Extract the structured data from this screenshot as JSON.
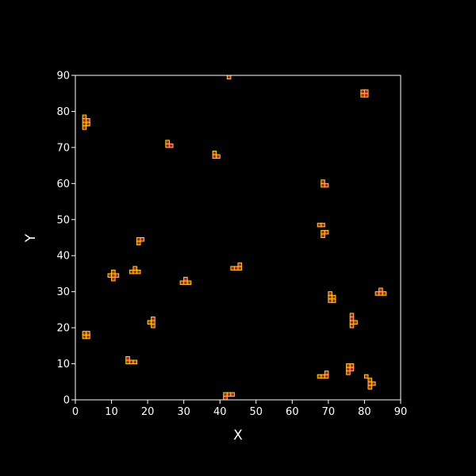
{
  "chart_data": {
    "type": "scatter",
    "title": "",
    "xlabel": "X",
    "ylabel": "Y",
    "xlim": [
      0,
      90
    ],
    "ylim": [
      0,
      90
    ],
    "xticks": [
      "0",
      "10",
      "20",
      "30",
      "40",
      "50",
      "60",
      "70",
      "80",
      "90"
    ],
    "yticks": [
      "0",
      "10",
      "20",
      "30",
      "40",
      "50",
      "60",
      "70",
      "80",
      "90"
    ],
    "grid": false,
    "legend": "none",
    "colors": {
      "background": "#000000",
      "axes": "#ffffff",
      "fill": "#b22222",
      "edge": "#ffd700"
    },
    "series": [
      {
        "cell_size": 1,
        "points": [
          [
            42,
            89
          ],
          [
            79,
            84
          ],
          [
            80,
            84
          ],
          [
            79,
            85
          ],
          [
            80,
            85
          ],
          [
            2,
            76
          ],
          [
            3,
            76
          ],
          [
            2,
            77
          ],
          [
            3,
            77
          ],
          [
            2,
            78
          ],
          [
            2,
            75
          ],
          [
            25,
            70
          ],
          [
            26,
            70
          ],
          [
            25,
            71
          ],
          [
            38,
            67
          ],
          [
            39,
            67
          ],
          [
            38,
            68
          ],
          [
            68,
            59
          ],
          [
            69,
            59
          ],
          [
            68,
            60
          ],
          [
            67,
            48
          ],
          [
            68,
            48
          ],
          [
            68,
            46
          ],
          [
            69,
            46
          ],
          [
            68,
            45
          ],
          [
            17,
            43
          ],
          [
            17,
            44
          ],
          [
            18,
            44
          ],
          [
            44,
            36
          ],
          [
            45,
            36
          ],
          [
            45,
            37
          ],
          [
            43,
            36
          ],
          [
            15,
            35
          ],
          [
            16,
            35
          ],
          [
            17,
            35
          ],
          [
            16,
            36
          ],
          [
            9,
            34
          ],
          [
            10,
            34
          ],
          [
            11,
            34
          ],
          [
            10,
            35
          ],
          [
            10,
            33
          ],
          [
            29,
            32
          ],
          [
            30,
            32
          ],
          [
            30,
            33
          ],
          [
            31,
            32
          ],
          [
            84,
            29
          ],
          [
            85,
            29
          ],
          [
            84,
            30
          ],
          [
            83,
            29
          ],
          [
            70,
            27
          ],
          [
            71,
            27
          ],
          [
            70,
            28
          ],
          [
            71,
            28
          ],
          [
            70,
            29
          ],
          [
            76,
            21
          ],
          [
            77,
            21
          ],
          [
            76,
            22
          ],
          [
            76,
            20
          ],
          [
            76,
            23
          ],
          [
            20,
            21
          ],
          [
            21,
            21
          ],
          [
            21,
            22
          ],
          [
            21,
            20
          ],
          [
            2,
            17
          ],
          [
            3,
            17
          ],
          [
            2,
            18
          ],
          [
            3,
            18
          ],
          [
            14,
            10
          ],
          [
            15,
            10
          ],
          [
            16,
            10
          ],
          [
            14,
            11
          ],
          [
            75,
            8
          ],
          [
            76,
            8
          ],
          [
            75,
            9
          ],
          [
            75,
            7
          ],
          [
            76,
            9
          ],
          [
            68,
            6
          ],
          [
            69,
            6
          ],
          [
            67,
            6
          ],
          [
            69,
            7
          ],
          [
            81,
            4
          ],
          [
            82,
            4
          ],
          [
            81,
            3
          ],
          [
            80,
            6
          ],
          [
            81,
            5
          ],
          [
            41,
            1
          ],
          [
            42,
            1
          ],
          [
            43,
            1
          ],
          [
            41,
            0
          ]
        ]
      }
    ]
  }
}
